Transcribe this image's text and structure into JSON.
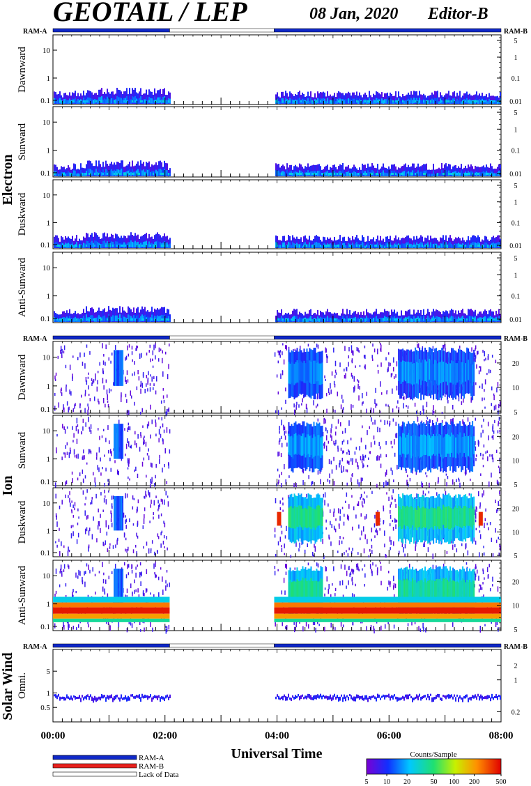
{
  "header": {
    "title": "GEOTAIL / LEP",
    "date": "08 Jan, 2020",
    "editor": "Editor-B"
  },
  "colors": {
    "ram_a": "#0f28c8",
    "ram_b": "#e8201c",
    "lack_of_data": "#ffffff"
  },
  "chart_data": {
    "type": "heatmap",
    "xlabel": "Universal Time",
    "x_ticks": [
      "00:00",
      "02:00",
      "04:00",
      "06:00",
      "08:00"
    ],
    "x_range": [
      "00:00",
      "08:00"
    ],
    "data_gap": [
      "02:05",
      "03:57"
    ],
    "mode_bar": {
      "left_label": "RAM-A",
      "right_label": "RAM-B",
      "segments": [
        {
          "from": "00:00",
          "to": "02:05",
          "mode": "RAM-A"
        },
        {
          "from": "02:05",
          "to": "03:57",
          "mode": "Lack of Data"
        },
        {
          "from": "03:57",
          "to": "08:00",
          "mode": "RAM-A"
        }
      ]
    },
    "groups": [
      {
        "name": "Electron",
        "panels": [
          {
            "label": "Dawnward",
            "left_ticks": [
              "10",
              "1",
              "0.1"
            ],
            "right_ticks": [
              "5",
              "1",
              "0.1",
              "0.01"
            ]
          },
          {
            "label": "Sunward",
            "left_ticks": [
              "10",
              "1",
              "0.1"
            ],
            "right_ticks": [
              "5",
              "1",
              "0.1",
              "0.01"
            ]
          },
          {
            "label": "Duskward",
            "left_ticks": [
              "10",
              "1",
              "0.1"
            ],
            "right_ticks": [
              "5",
              "1",
              "0.1",
              "0.01"
            ]
          },
          {
            "label": "Anti-Sunward",
            "left_ticks": [
              "10",
              "1",
              "0.1"
            ],
            "right_ticks": [
              "5",
              "1",
              "0.1",
              "0.01"
            ]
          }
        ]
      },
      {
        "name": "Ion",
        "panels": [
          {
            "label": "Dawnward",
            "left_ticks": [
              "10",
              "1",
              "0.1"
            ],
            "right_ticks": [
              "20",
              "10",
              "5"
            ]
          },
          {
            "label": "Sunward",
            "left_ticks": [
              "10",
              "1",
              "0.1"
            ],
            "right_ticks": [
              "20",
              "10",
              "5"
            ]
          },
          {
            "label": "Duskward",
            "left_ticks": [
              "10",
              "1",
              "0.1"
            ],
            "right_ticks": [
              "20",
              "10",
              "5"
            ]
          },
          {
            "label": "Anti-Sunward",
            "left_ticks": [
              "10",
              "1",
              "0.1"
            ],
            "right_ticks": [
              "20",
              "10",
              "5"
            ]
          }
        ]
      },
      {
        "name": "Solar Wind",
        "panels": [
          {
            "label": "Omni.",
            "left_ticks": [
              "5",
              "1",
              "0.5"
            ],
            "right_ticks": [
              "2",
              "1",
              "0.2"
            ]
          }
        ]
      }
    ],
    "legend": {
      "items": [
        "RAM-A",
        "RAM-B",
        "Lack of Data"
      ]
    },
    "colorbar": {
      "title": "Counts/Sample",
      "ticks": [
        "5",
        "10",
        "20",
        "50",
        "100",
        "200",
        "500"
      ],
      "range": [
        5,
        500
      ],
      "scale": "log"
    }
  }
}
